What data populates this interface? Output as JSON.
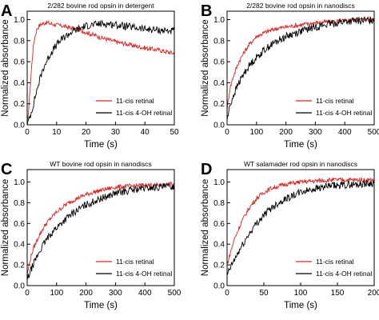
{
  "chart_data": [
    {
      "type": "line",
      "panel_letter": "A",
      "title": "2/282 bovine rod opsin in detergent",
      "xlabel": "Time (s)",
      "ylabel": "Normalized absorbance",
      "xlim": [
        0,
        50
      ],
      "ylim": [
        0,
        1.08
      ],
      "xticks": [
        0,
        10,
        20,
        30,
        40,
        50
      ],
      "yticks": [
        0.0,
        0.2,
        0.4,
        0.6,
        0.8,
        1.0
      ],
      "ytick_labels": [
        "0.0",
        "0.2",
        "0.4",
        "0.6",
        "0.8",
        "1.0"
      ],
      "grid": false,
      "legend_position": "bottom-right",
      "series": [
        {
          "name": "11-cis retinal",
          "color": "#d62728",
          "x": [
            0,
            0.5,
            1,
            1.5,
            2,
            2.5,
            3,
            3.5,
            4,
            5,
            6,
            7,
            8,
            10,
            12,
            15,
            18,
            20,
            25,
            30,
            35,
            40,
            45,
            48,
            50
          ],
          "y": [
            0.0,
            0.15,
            0.35,
            0.55,
            0.72,
            0.82,
            0.88,
            0.92,
            0.94,
            0.96,
            0.97,
            0.97,
            0.96,
            0.95,
            0.94,
            0.92,
            0.9,
            0.88,
            0.83,
            0.79,
            0.76,
            0.73,
            0.71,
            0.69,
            0.68
          ]
        },
        {
          "name": "11-cis 4-OH retinal",
          "color": "#000000",
          "x": [
            0,
            1,
            2,
            3,
            4,
            5,
            6,
            8,
            10,
            12,
            15,
            18,
            20,
            22,
            25,
            28,
            30,
            35,
            40,
            45,
            50
          ],
          "y": [
            0.0,
            0.08,
            0.18,
            0.3,
            0.4,
            0.5,
            0.57,
            0.68,
            0.76,
            0.82,
            0.88,
            0.92,
            0.94,
            0.95,
            0.96,
            0.96,
            0.95,
            0.93,
            0.91,
            0.9,
            0.89
          ]
        }
      ]
    },
    {
      "type": "line",
      "panel_letter": "B",
      "title": "2/282 bovine rod opsin in nanodiscs",
      "xlabel": "Time (s)",
      "ylabel": "Normalized absorbance",
      "xlim": [
        0,
        500
      ],
      "ylim": [
        0,
        1.08
      ],
      "xticks": [
        0,
        100,
        200,
        300,
        400,
        500
      ],
      "yticks": [
        0.0,
        0.2,
        0.4,
        0.6,
        0.8,
        1.0
      ],
      "ytick_labels": [
        "0.0",
        "0.2",
        "0.4",
        "0.6",
        "0.8",
        "1.0"
      ],
      "grid": false,
      "legend_position": "bottom-right",
      "series": [
        {
          "name": "11-cis retinal",
          "color": "#d62728",
          "x": [
            0,
            10,
            20,
            40,
            60,
            80,
            100,
            130,
            160,
            200,
            250,
            300,
            350,
            400,
            450,
            500
          ],
          "y": [
            0.15,
            0.35,
            0.45,
            0.6,
            0.7,
            0.78,
            0.84,
            0.88,
            0.91,
            0.93,
            0.95,
            0.97,
            0.98,
            0.99,
            1.0,
            1.0
          ]
        },
        {
          "name": "11-cis 4-OH retinal",
          "color": "#000000",
          "x": [
            0,
            10,
            20,
            40,
            60,
            80,
            100,
            130,
            160,
            200,
            250,
            300,
            350,
            400,
            450,
            500
          ],
          "y": [
            0.05,
            0.18,
            0.27,
            0.4,
            0.5,
            0.58,
            0.64,
            0.72,
            0.78,
            0.84,
            0.89,
            0.93,
            0.96,
            0.98,
            0.99,
            1.0
          ]
        }
      ]
    },
    {
      "type": "line",
      "panel_letter": "C",
      "title": "WT bovine rod opsin in nanodiscs",
      "xlabel": "Time (s)",
      "ylabel": "Normalized absorbance",
      "xlim": [
        0,
        500
      ],
      "ylim": [
        0,
        1.12
      ],
      "xticks": [
        0,
        100,
        200,
        300,
        400,
        500
      ],
      "yticks": [
        0.0,
        0.2,
        0.4,
        0.6,
        0.8,
        1.0
      ],
      "ytick_labels": [
        "0.0",
        "0.2",
        "0.4",
        "0.6",
        "0.8",
        "1.0"
      ],
      "grid": false,
      "legend_position": "bottom-right",
      "series": [
        {
          "name": "11-cis retinal",
          "color": "#d62728",
          "x": [
            0,
            10,
            20,
            40,
            60,
            80,
            100,
            130,
            160,
            200,
            250,
            300,
            350,
            400,
            450,
            500
          ],
          "y": [
            0.1,
            0.25,
            0.35,
            0.48,
            0.58,
            0.65,
            0.71,
            0.78,
            0.83,
            0.88,
            0.92,
            0.95,
            0.96,
            0.97,
            0.97,
            0.98
          ]
        },
        {
          "name": "11-cis 4-OH retinal",
          "color": "#000000",
          "x": [
            0,
            10,
            20,
            40,
            60,
            80,
            100,
            130,
            160,
            200,
            250,
            300,
            350,
            400,
            450,
            500
          ],
          "y": [
            0.05,
            0.13,
            0.2,
            0.32,
            0.42,
            0.5,
            0.56,
            0.64,
            0.71,
            0.78,
            0.84,
            0.89,
            0.92,
            0.94,
            0.95,
            0.96
          ]
        }
      ]
    },
    {
      "type": "line",
      "panel_letter": "D",
      "title": "WT salamader rod opsin in nanodiscs",
      "xlabel": "Time (s)",
      "ylabel": "Normalized absorbance",
      "xlim": [
        0,
        200
      ],
      "ylim": [
        0,
        1.12
      ],
      "xticks": [
        0,
        50,
        100,
        150,
        200
      ],
      "yticks": [
        0.0,
        0.2,
        0.4,
        0.6,
        0.8,
        1.0
      ],
      "ytick_labels": [
        "0.0",
        "0.2",
        "0.4",
        "0.6",
        "0.8",
        "1.0"
      ],
      "grid": false,
      "legend_position": "bottom-right",
      "series": [
        {
          "name": "11-cis retinal",
          "color": "#d62728",
          "x": [
            0,
            5,
            10,
            20,
            30,
            40,
            50,
            60,
            70,
            80,
            100,
            120,
            140,
            160,
            180,
            200
          ],
          "y": [
            0.2,
            0.33,
            0.45,
            0.62,
            0.75,
            0.84,
            0.9,
            0.94,
            0.96,
            0.98,
            1.0,
            1.01,
            1.02,
            1.02,
            1.02,
            1.02
          ]
        },
        {
          "name": "11-cis 4-OH retinal",
          "color": "#000000",
          "x": [
            0,
            5,
            10,
            20,
            30,
            40,
            50,
            60,
            70,
            80,
            100,
            120,
            140,
            160,
            180,
            200
          ],
          "y": [
            0.1,
            0.18,
            0.25,
            0.38,
            0.5,
            0.6,
            0.68,
            0.75,
            0.8,
            0.84,
            0.9,
            0.94,
            0.96,
            0.97,
            0.98,
            0.99
          ]
        }
      ]
    }
  ]
}
